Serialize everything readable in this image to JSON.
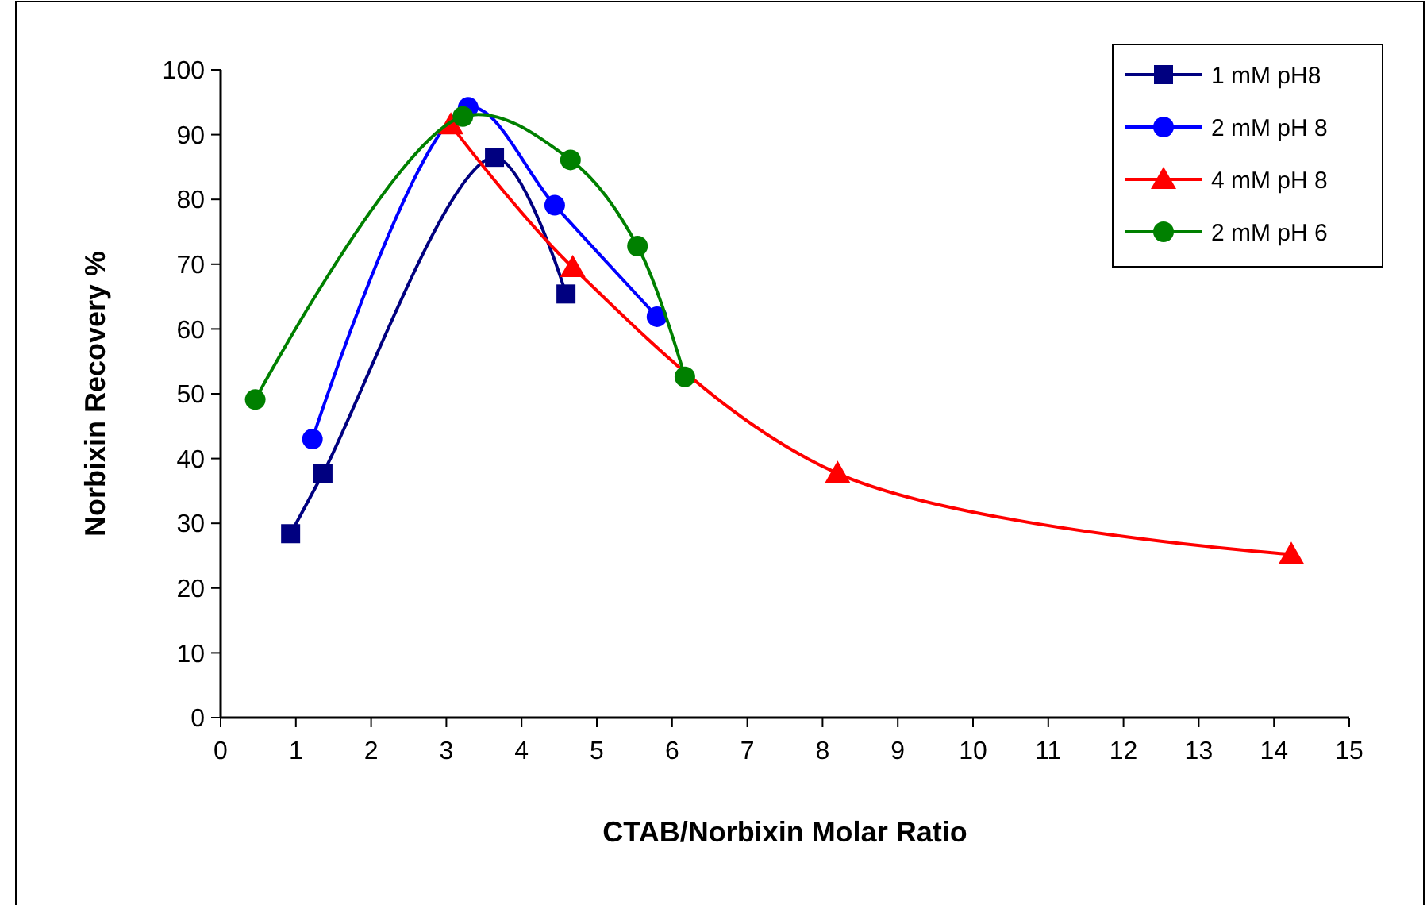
{
  "chart_data": {
    "type": "line",
    "xlabel": "CTAB/Norbixin Molar Ratio",
    "ylabel": "Norbixin Recovery %",
    "xlim": [
      0,
      15
    ],
    "xticks": [
      0,
      1,
      2,
      3,
      4,
      5,
      6,
      7,
      8,
      9,
      10,
      11,
      12,
      13,
      14,
      15
    ],
    "ylim": [
      0,
      100
    ],
    "yticks": [
      0,
      10,
      20,
      30,
      40,
      50,
      60,
      70,
      80,
      90,
      100
    ],
    "grid": false,
    "legend": "top right",
    "series": [
      {
        "name": "1 mM pH8",
        "color": "#000080",
        "marker": "square",
        "x": [
          0.93,
          1.36,
          3.64,
          4.59
        ],
        "values": [
          28.4,
          37.7,
          86.5,
          65.4
        ]
      },
      {
        "name": "2 mM pH 8",
        "color": "#0000ff",
        "marker": "circle",
        "x": [
          1.22,
          3.29,
          4.44,
          5.8
        ],
        "values": [
          43,
          94.2,
          79.1,
          61.9
        ]
      },
      {
        "name": "4 mM pH 8",
        "color": "#ff0000",
        "marker": "triangle",
        "x": [
          3.06,
          4.68,
          8.2,
          14.23
        ],
        "values": [
          91.5,
          69.5,
          37.7,
          25.2
        ]
      },
      {
        "name": "2 mM pH 6",
        "color": "#008000",
        "marker": "circle",
        "x": [
          0.46,
          3.22,
          4.65,
          5.54,
          6.17
        ],
        "values": [
          49.1,
          92.8,
          86.1,
          72.8,
          52.6
        ]
      }
    ]
  }
}
